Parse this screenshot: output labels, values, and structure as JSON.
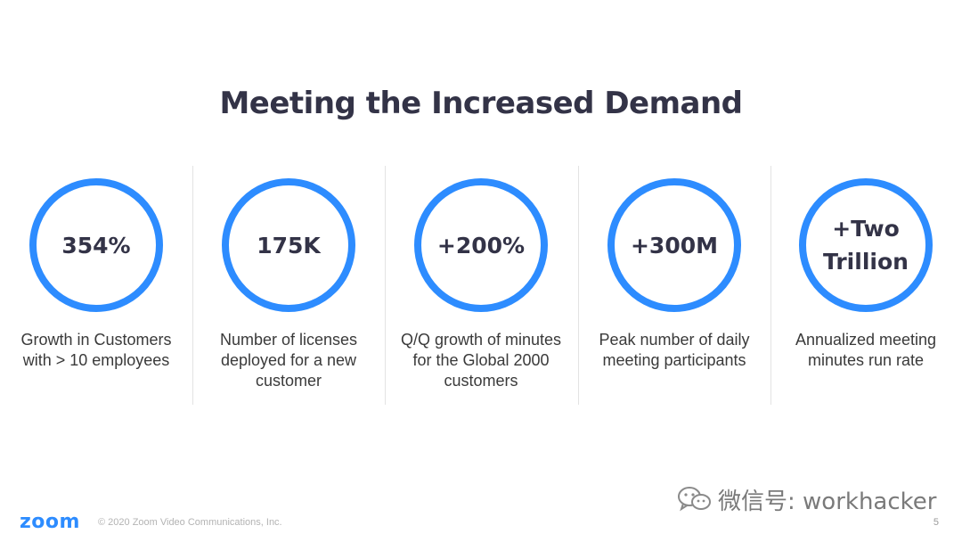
{
  "slide": {
    "title": "Meeting the Increased Demand",
    "stats": [
      {
        "value": "354%",
        "description": "Growth in Customers\nwith > 10 employees"
      },
      {
        "value": "175K",
        "description": "Number of licenses\ndeployed for a new\ncustomer"
      },
      {
        "value": "+200%",
        "description": "Q/Q growth of minutes\nfor the Global 2000\ncustomers"
      },
      {
        "value": "+300M",
        "description": "Peak number of daily\nmeeting participants"
      },
      {
        "value": "+Two\nTrillion",
        "description": "Annualized meeting\nminutes run rate"
      }
    ]
  },
  "footer": {
    "logo_text": "zoom",
    "copyright": "© 2020 Zoom Video Communications, Inc.",
    "page_number": "5"
  },
  "watermark": {
    "text": "微信号: workhacker",
    "icon": "wechat-icon"
  },
  "colors": {
    "accent": "#2D8CFF",
    "title": "#333347",
    "text": "#3a3a3a"
  }
}
